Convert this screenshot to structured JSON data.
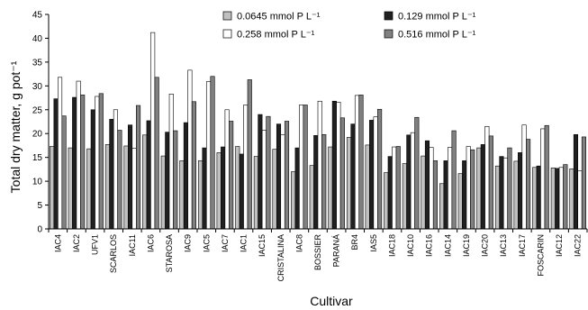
{
  "chart_data": {
    "type": "bar",
    "ylabel": "Total dry matter, g pot⁻¹",
    "xlabel": "Cultivar",
    "ylim": [
      0,
      45
    ],
    "yticks": [
      0,
      5,
      10,
      15,
      20,
      25,
      30,
      35,
      40,
      45
    ],
    "grid": false,
    "legend_position": "top-right",
    "categories": [
      "IAC4",
      "IAC2",
      "UFV1",
      "SCARLOS",
      "IAC11",
      "IAC6",
      "STAROSA",
      "IAC9",
      "IAC5",
      "IAC7",
      "IAC1",
      "IAC15",
      "CRISTALINA",
      "IAC8",
      "BOSSIER",
      "PARANÁ",
      "BR4",
      "IAS5",
      "IAC18",
      "IAC10",
      "IAC16",
      "IAC14",
      "IAC19",
      "IAC20",
      "IAC13",
      "IAC17",
      "FOSCARIN",
      "IAC12",
      "IAC22"
    ],
    "series": [
      {
        "name": "0.0645 mmol P L⁻¹",
        "color": "#c0c0c0",
        "values": [
          17.3,
          17.0,
          16.8,
          17.7,
          17.4,
          19.7,
          15.3,
          14.3,
          14.3,
          16.0,
          17.3,
          15.2,
          16.7,
          12.0,
          13.3,
          17.2,
          19.2,
          17.6,
          11.8,
          13.7,
          15.3,
          9.5,
          11.6,
          17.0,
          13.2,
          14.2,
          12.9,
          12.8,
          12.6
        ]
      },
      {
        "name": "0.129 mmol P L⁻¹",
        "color": "#202020",
        "values": [
          27.3,
          27.6,
          25.0,
          23.0,
          21.8,
          22.7,
          20.3,
          22.3,
          17.0,
          17.2,
          15.7,
          24.0,
          22.0,
          17.0,
          19.6,
          26.8,
          22.0,
          22.8,
          15.2,
          19.7,
          18.5,
          14.3,
          14.3,
          17.7,
          15.2,
          16.0,
          13.2,
          12.7,
          19.8
        ]
      },
      {
        "name": "0.258 mmol P L⁻¹",
        "color": "#ffffff",
        "values": [
          31.8,
          31.0,
          27.8,
          25.0,
          16.9,
          41.2,
          28.3,
          33.3,
          30.9,
          25.0,
          26.0,
          20.7,
          19.8,
          26.0,
          26.8,
          26.6,
          28.0,
          23.5,
          17.2,
          20.2,
          17.1,
          17.1,
          17.3,
          21.5,
          14.9,
          21.8,
          21.0,
          12.9,
          12.2
        ]
      },
      {
        "name": "0.516 mmol P L⁻¹",
        "color": "#808080",
        "values": [
          23.7,
          28.1,
          28.4,
          20.7,
          25.9,
          31.8,
          20.6,
          26.7,
          32.0,
          22.6,
          31.3,
          23.6,
          22.6,
          26.0,
          19.8,
          23.3,
          28.1,
          25.1,
          17.3,
          23.4,
          14.3,
          20.6,
          16.6,
          19.5,
          17.0,
          18.8,
          21.7,
          13.5,
          19.3
        ]
      }
    ]
  }
}
